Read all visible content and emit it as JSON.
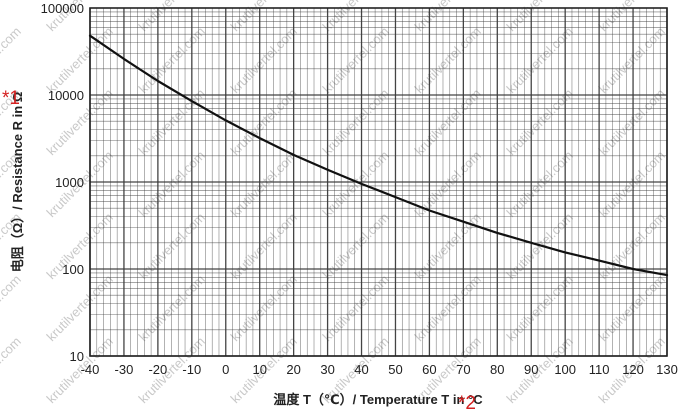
{
  "chart_data": {
    "type": "line",
    "title": "",
    "xlabel": "温度 T（℃）/  Temperature T in °C",
    "ylabel": "电阻（Ω）/ Resistance R in  Ω",
    "x_scale": "linear",
    "y_scale": "log",
    "xlim": [
      -40,
      130
    ],
    "ylim": [
      10,
      100000
    ],
    "grid": true,
    "legend": "none",
    "x_ticks": [
      "-40",
      "-30",
      "-20",
      "-10",
      "0",
      "10",
      "20",
      "30",
      "40",
      "50",
      "60",
      "70",
      "80",
      "90",
      "100",
      "110",
      "120",
      "130"
    ],
    "y_ticks": [
      "100000",
      "10000",
      "1000",
      "100",
      "10"
    ],
    "series": [
      {
        "x": [
          -40,
          -30,
          -20,
          -10,
          0,
          10,
          20,
          30,
          40,
          50,
          60,
          70,
          80,
          90,
          100,
          110,
          120,
          130
        ],
        "y": [
          48000,
          26000,
          14500,
          8500,
          5100,
          3200,
          2050,
          1380,
          950,
          670,
          470,
          350,
          260,
          200,
          155,
          125,
          100,
          85
        ]
      }
    ],
    "annotations": [
      "*1",
      "*2"
    ],
    "watermark": "krutilvertel.com",
    "colors": {
      "curve": "#111111",
      "grid": "#3a3a3a",
      "annotation": "#d42020",
      "watermark": "#c9c9c9"
    }
  }
}
